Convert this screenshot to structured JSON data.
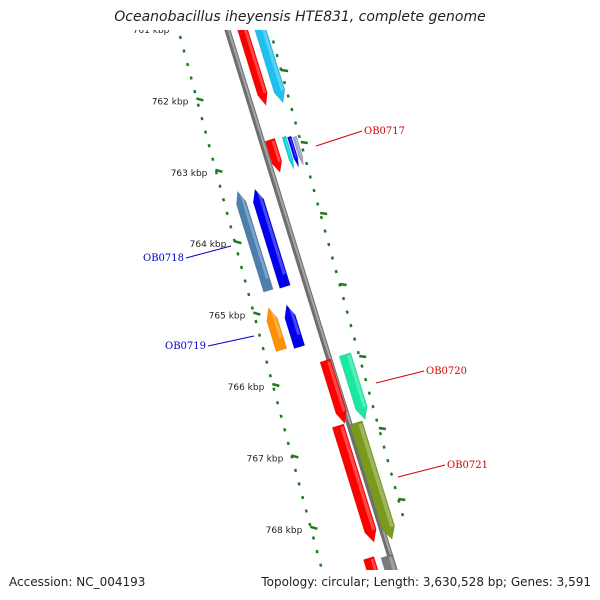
{
  "title": "Oceanobacillus iheyensis HTE831, complete genome",
  "footer": {
    "accession": "Accession: NC_004193",
    "summary": "Topology: circular; Length: 3,630,528 bp; Genes: 3,591"
  },
  "colors": {
    "backbone": "#8c8c8c",
    "tick": "#1e7a1e",
    "forward_label": "#d40000",
    "reverse_label": "#0000c8"
  },
  "ticks": [
    "761 kbp",
    "762 kbp",
    "763 kbp",
    "764 kbp",
    "765 kbp",
    "766 kbp",
    "767 kbp",
    "768 kbp"
  ],
  "gene_labels": [
    {
      "name": "OB0717",
      "strand": "forward"
    },
    {
      "name": "OB0718",
      "strand": "reverse"
    },
    {
      "name": "OB0719",
      "strand": "reverse"
    },
    {
      "name": "OB0720",
      "strand": "forward"
    },
    {
      "name": "OB0721",
      "strand": "forward"
    }
  ]
}
